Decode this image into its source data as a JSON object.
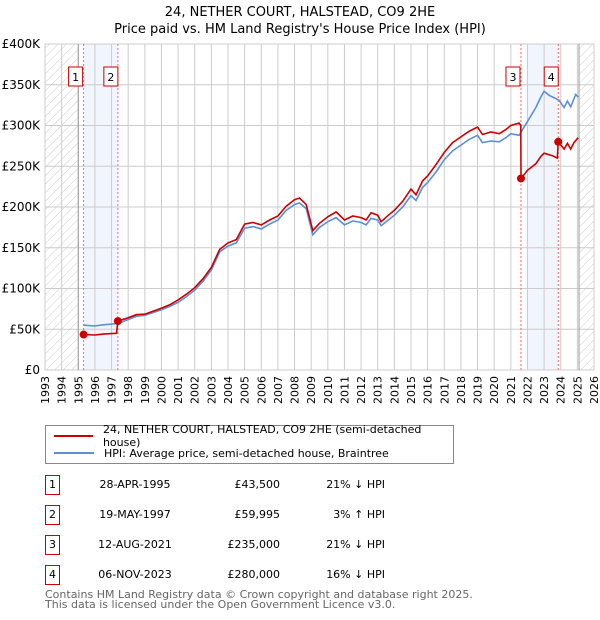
{
  "chart_data": {
    "type": "line",
    "title": "24, NETHER COURT, HALSTEAD, CO9 2HE",
    "subtitle": "Price paid vs. HM Land Registry's House Price Index (HPI)",
    "xlim": [
      1993,
      2026
    ],
    "ylim": [
      0,
      400000
    ],
    "x_ticks": [
      1993,
      1994,
      1995,
      1996,
      1997,
      1998,
      1999,
      2000,
      2001,
      2002,
      2003,
      2004,
      2005,
      2006,
      2007,
      2008,
      2009,
      2010,
      2011,
      2012,
      2013,
      2014,
      2015,
      2016,
      2017,
      2018,
      2019,
      2020,
      2021,
      2022,
      2023,
      2024,
      2025,
      2026
    ],
    "y_ticks": [
      {
        "v": 0,
        "label": "£0"
      },
      {
        "v": 50000,
        "label": "£50K"
      },
      {
        "v": 100000,
        "label": "£100K"
      },
      {
        "v": 150000,
        "label": "£150K"
      },
      {
        "v": 200000,
        "label": "£200K"
      },
      {
        "v": 250000,
        "label": "£250K"
      },
      {
        "v": 300000,
        "label": "£300K"
      },
      {
        "v": 350000,
        "label": "£350K"
      },
      {
        "v": 400000,
        "label": "£400K"
      }
    ],
    "grid": true,
    "hatched_ranges": [
      [
        1993,
        1995.0
      ],
      [
        2025.1,
        2026
      ]
    ],
    "shaded_ranges": [
      [
        1995.32,
        1997.38
      ],
      [
        2022.0,
        2023.85
      ]
    ],
    "series": [
      {
        "name": "24, NETHER COURT, HALSTEAD, CO9 2HE (semi-detached house)",
        "color": "#cc0000",
        "points": [
          [
            1995.32,
            43500
          ],
          [
            1996,
            43000
          ],
          [
            1996.5,
            44000
          ],
          [
            1997.3,
            45000
          ],
          [
            1997.38,
            59995
          ],
          [
            1998,
            64000
          ],
          [
            1998.5,
            68000
          ],
          [
            1999,
            68500
          ],
          [
            2000,
            76000
          ],
          [
            2000.5,
            80000
          ],
          [
            2001,
            86000
          ],
          [
            2001.5,
            93000
          ],
          [
            2002,
            101000
          ],
          [
            2002.5,
            112000
          ],
          [
            2003,
            126000
          ],
          [
            2003.5,
            148000
          ],
          [
            2004,
            156000
          ],
          [
            2004.5,
            160000
          ],
          [
            2005,
            179000
          ],
          [
            2005.5,
            181000
          ],
          [
            2006,
            178000
          ],
          [
            2006.5,
            184000
          ],
          [
            2007,
            189000
          ],
          [
            2007.5,
            201000
          ],
          [
            2008,
            209000
          ],
          [
            2008.3,
            211000
          ],
          [
            2008.7,
            203000
          ],
          [
            2009.1,
            171000
          ],
          [
            2009.5,
            180000
          ],
          [
            2010,
            188000
          ],
          [
            2010.5,
            194000
          ],
          [
            2011,
            184000
          ],
          [
            2011.5,
            189000
          ],
          [
            2012,
            187000
          ],
          [
            2012.3,
            184000
          ],
          [
            2012.6,
            193000
          ],
          [
            2013,
            190000
          ],
          [
            2013.2,
            182000
          ],
          [
            2013.7,
            191000
          ],
          [
            2014,
            196000
          ],
          [
            2014.5,
            207000
          ],
          [
            2015,
            222000
          ],
          [
            2015.3,
            215000
          ],
          [
            2015.7,
            232000
          ],
          [
            2016,
            238000
          ],
          [
            2016.5,
            252000
          ],
          [
            2017,
            267000
          ],
          [
            2017.5,
            279000
          ],
          [
            2018,
            286000
          ],
          [
            2018.5,
            293000
          ],
          [
            2019,
            298000
          ],
          [
            2019.3,
            289000
          ],
          [
            2019.8,
            292000
          ],
          [
            2020.3,
            290000
          ],
          [
            2020.7,
            295000
          ],
          [
            2021,
            300000
          ],
          [
            2021.5,
            303000
          ],
          [
            2021.6,
            300000
          ],
          [
            2021.61,
            235000
          ],
          [
            2022,
            245000
          ],
          [
            2022.5,
            253000
          ],
          [
            2022.8,
            262000
          ],
          [
            2023,
            266000
          ],
          [
            2023.5,
            263000
          ],
          [
            2023.8,
            260000
          ],
          [
            2023.85,
            280000
          ],
          [
            2024.2,
            271000
          ],
          [
            2024.4,
            278000
          ],
          [
            2024.6,
            271000
          ],
          [
            2024.8,
            279000
          ],
          [
            2025.05,
            285000
          ]
        ]
      },
      {
        "name": "HPI: Average price, semi-detached house, Braintree",
        "color": "#5b8fd6",
        "points": [
          [
            1995.32,
            55000
          ],
          [
            1996,
            54000
          ],
          [
            1996.5,
            55500
          ],
          [
            1997.4,
            57000
          ],
          [
            1998,
            62000
          ],
          [
            1998.5,
            66000
          ],
          [
            1999,
            67000
          ],
          [
            2000,
            74000
          ],
          [
            2000.5,
            78000
          ],
          [
            2001,
            83000
          ],
          [
            2001.5,
            90000
          ],
          [
            2002,
            98000
          ],
          [
            2002.5,
            109000
          ],
          [
            2003,
            123000
          ],
          [
            2003.5,
            145000
          ],
          [
            2004,
            152000
          ],
          [
            2004.5,
            156000
          ],
          [
            2005,
            174000
          ],
          [
            2005.5,
            176000
          ],
          [
            2006,
            173000
          ],
          [
            2006.5,
            179000
          ],
          [
            2007,
            184000
          ],
          [
            2007.5,
            196000
          ],
          [
            2008,
            203000
          ],
          [
            2008.3,
            205000
          ],
          [
            2008.7,
            198000
          ],
          [
            2009.1,
            166000
          ],
          [
            2009.5,
            175000
          ],
          [
            2010,
            182000
          ],
          [
            2010.5,
            187000
          ],
          [
            2011,
            178000
          ],
          [
            2011.5,
            183000
          ],
          [
            2012,
            181000
          ],
          [
            2012.3,
            178000
          ],
          [
            2012.6,
            186000
          ],
          [
            2013,
            184000
          ],
          [
            2013.2,
            177000
          ],
          [
            2013.7,
            185000
          ],
          [
            2014,
            190000
          ],
          [
            2014.5,
            200000
          ],
          [
            2015,
            214000
          ],
          [
            2015.3,
            208000
          ],
          [
            2015.7,
            224000
          ],
          [
            2016,
            230000
          ],
          [
            2016.5,
            243000
          ],
          [
            2017,
            258000
          ],
          [
            2017.5,
            269000
          ],
          [
            2018,
            276000
          ],
          [
            2018.5,
            283000
          ],
          [
            2019,
            288000
          ],
          [
            2019.3,
            279000
          ],
          [
            2019.8,
            281000
          ],
          [
            2020.3,
            280000
          ],
          [
            2020.7,
            285000
          ],
          [
            2021,
            290000
          ],
          [
            2021.5,
            288000
          ],
          [
            2022,
            305000
          ],
          [
            2022.5,
            322000
          ],
          [
            2022.8,
            335000
          ],
          [
            2023,
            342000
          ],
          [
            2023.3,
            337000
          ],
          [
            2023.9,
            331000
          ],
          [
            2024.2,
            322000
          ],
          [
            2024.4,
            330000
          ],
          [
            2024.6,
            323000
          ],
          [
            2024.9,
            338000
          ],
          [
            2025.05,
            335000
          ]
        ]
      }
    ],
    "sales": [
      {
        "label": "1",
        "x": 1995.32,
        "price": 43500
      },
      {
        "label": "2",
        "x": 1997.38,
        "price": 59995
      },
      {
        "label": "3",
        "x": 2021.61,
        "price": 235000
      },
      {
        "label": "4",
        "x": 2023.85,
        "price": 280000
      }
    ]
  },
  "legend": {
    "property": "24, NETHER COURT, HALSTEAD, CO9 2HE (semi-detached house)",
    "hpi": "HPI: Average price, semi-detached house, Braintree"
  },
  "transactions": [
    {
      "num": "1",
      "date": "28-APR-1995",
      "price": "£43,500",
      "pct": "21% ↓ HPI"
    },
    {
      "num": "2",
      "date": "19-MAY-1997",
      "price": "£59,995",
      "pct": "3% ↑ HPI"
    },
    {
      "num": "3",
      "date": "12-AUG-2021",
      "price": "£235,000",
      "pct": "21% ↓ HPI"
    },
    {
      "num": "4",
      "date": "06-NOV-2023",
      "price": "£280,000",
      "pct": "16% ↓ HPI"
    }
  ],
  "footer": {
    "line1": "Contains HM Land Registry data © Crown copyright and database right 2025.",
    "line2": "This data is licensed under the Open Government Licence v3.0."
  }
}
